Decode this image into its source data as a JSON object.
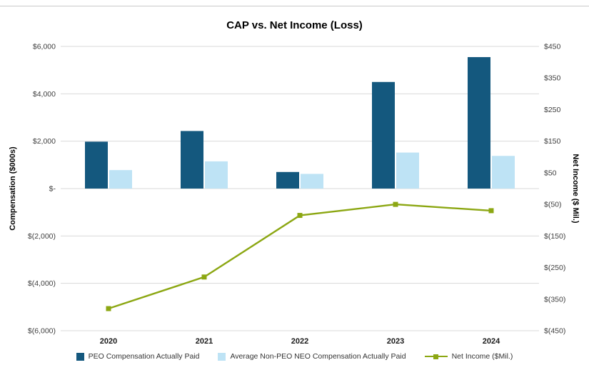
{
  "chart_data": {
    "type": "combo-bar-line",
    "title": "CAP vs. Net Income (Loss)",
    "categories": [
      "2020",
      "2021",
      "2022",
      "2023",
      "2024"
    ],
    "bar_series": [
      {
        "name": "PEO Compensation Actually Paid",
        "color": "#14587e",
        "axis": "left",
        "values": [
          1980,
          2430,
          700,
          4500,
          5550
        ]
      },
      {
        "name": "Average Non-PEO NEO Compensation Actually Paid",
        "color": "#bee3f5",
        "axis": "left",
        "values": [
          780,
          1150,
          620,
          1520,
          1380
        ]
      }
    ],
    "line_series": {
      "name": "Net Income ($Mil.)",
      "color": "#8ca713",
      "axis": "right",
      "values": [
        -380,
        -280,
        -85,
        -50,
        -70
      ]
    },
    "left_axis": {
      "label": "Compensation ($000s)",
      "min": -6000,
      "max": 6000,
      "step": 2000,
      "tick_labels": [
        "$6,000",
        "$4,000",
        "$2,000",
        "$-",
        "$(2,000)",
        "$(4,000)",
        "$(6,000)"
      ]
    },
    "right_axis": {
      "label": "Net Income ($ Mil.)",
      "min": -450,
      "max": 450,
      "step": 100,
      "tick_labels": [
        "$450",
        "$350",
        "$250",
        "$150",
        "$50",
        "$(50)",
        "$(150)",
        "$(250)",
        "$(350)",
        "$(450)"
      ]
    },
    "grid": "horizontal",
    "legend_position": "bottom",
    "colors": {
      "gridline": "#d9d9d9",
      "tick_text": "#3f3f3f"
    }
  }
}
